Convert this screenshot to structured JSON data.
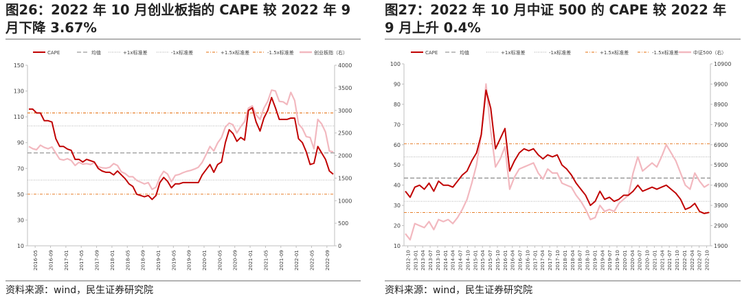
{
  "colors": {
    "cape": "#c00000",
    "index": "#f2b8bf",
    "mean": "#7f7f7f",
    "std1": "#a6a6a6",
    "std15": "#e46c0a"
  },
  "charts": [
    {
      "title": "图26：2022 年 10 月创业板指的 CAPE 较 2022 年 9 月下降 3.67%",
      "source": "资料来源：wind，民生证券研究院"
    },
    {
      "title": "图27：2022 年 10 月中证 500 的 CAPE 较 2022 年 9 月上升 0.4%",
      "source": "资料来源：wind，民生证券研究院"
    }
  ],
  "chart_data": [
    {
      "type": "line",
      "legend_position": "top",
      "legend": [
        "CAPE",
        "均值",
        "+1x标准差",
        "-1x标准差",
        "+1.5x标准差",
        "-1.5x标准差",
        "创业板指（右）"
      ],
      "ylim_left": [
        10,
        150
      ],
      "yticks_left": [
        10,
        30,
        50,
        70,
        90,
        110,
        130,
        150
      ],
      "ylim_right": [
        0,
        4000
      ],
      "yticks_right": [
        0,
        500,
        1000,
        1500,
        2000,
        2500,
        3000,
        3500,
        4000
      ],
      "xticks": [
        "2016-05",
        "2016-09",
        "2017-01",
        "2017-05",
        "2017-09",
        "2018-01",
        "2018-05",
        "2018-09",
        "2019-01",
        "2019-05",
        "2019-09",
        "2020-01",
        "2020-05",
        "2020-09",
        "2021-01",
        "2021-05",
        "2021-09",
        "2022-01",
        "2022-05",
        "2022-09"
      ],
      "reference_lines": {
        "mean": 82,
        "plus_1sd": 103,
        "minus_1sd": 61,
        "plus_1_5sd": 113,
        "minus_1_5sd": 50
      },
      "series": [
        {
          "name": "CAPE",
          "axis": "left",
          "values": [
            116,
            116,
            113,
            113,
            107,
            107,
            106,
            93,
            87,
            87,
            85,
            84,
            77,
            77,
            75,
            77,
            76,
            75,
            70,
            68,
            67,
            67,
            65,
            68,
            65,
            62,
            58,
            56,
            50,
            49,
            48,
            49,
            46,
            49,
            59,
            63,
            60,
            55,
            58,
            58,
            59,
            59,
            59,
            59,
            59,
            65,
            69,
            73,
            67,
            73,
            75,
            90,
            100,
            97,
            91,
            94,
            92,
            115,
            117,
            106,
            99,
            109,
            115,
            125,
            117,
            108,
            108,
            108,
            109,
            109,
            93,
            90,
            83,
            73,
            74,
            87,
            82,
            77,
            68,
            65.5
          ]
        },
        {
          "name": "创业板指（右）",
          "axis": "right",
          "values": [
            2200,
            2150,
            2130,
            2230,
            2180,
            2150,
            2190,
            2050,
            1920,
            1900,
            1930,
            1890,
            1780,
            1850,
            1810,
            1820,
            1800,
            1840,
            1750,
            1730,
            1720,
            1740,
            1820,
            1780,
            1640,
            1600,
            1530,
            1530,
            1450,
            1410,
            1370,
            1400,
            1250,
            1300,
            1520,
            1650,
            1590,
            1420,
            1560,
            1580,
            1620,
            1650,
            1670,
            1700,
            1740,
            1850,
            2020,
            2200,
            2100,
            2280,
            2400,
            2630,
            2720,
            2680,
            2500,
            2640,
            2750,
            3050,
            3100,
            2900,
            2800,
            3050,
            3200,
            3450,
            3430,
            3200,
            3190,
            3130,
            3400,
            3220,
            2700,
            2600,
            2420,
            2400,
            2150,
            2800,
            2700,
            2520,
            2100,
            2080
          ]
        }
      ]
    },
    {
      "type": "line",
      "legend_position": "top",
      "legend": [
        "CAPE",
        "均值",
        "+1x标准差",
        "-1x标准差",
        "+1.5x标准差",
        "-1.5x标准差",
        "中证500（右）"
      ],
      "ylim_left": [
        10,
        100
      ],
      "yticks_left": [
        10,
        20,
        30,
        40,
        50,
        60,
        70,
        80,
        90,
        100
      ],
      "ylim_right": [
        1900,
        10900
      ],
      "yticks_right": [
        1900,
        2900,
        3900,
        4900,
        5900,
        6900,
        7900,
        8900,
        9900,
        10900
      ],
      "xticks": [
        "2012-10",
        "2013-01",
        "2013-04",
        "2013-07",
        "2013-10",
        "2014-01",
        "2014-04",
        "2014-07",
        "2014-10",
        "2015-01",
        "2015-04",
        "2015-07",
        "2015-10",
        "2016-01",
        "2016-04",
        "2016-07",
        "2016-10",
        "2017-01",
        "2017-04",
        "2017-07",
        "2017-10",
        "2018-01",
        "2018-04",
        "2018-07",
        "2018-10",
        "2019-01",
        "2019-04",
        "2019-07",
        "2019-10",
        "2020-01",
        "2020-04",
        "2020-07",
        "2020-10",
        "2021-01",
        "2021-04",
        "2021-07",
        "2021-10",
        "2022-01",
        "2022-04",
        "2022-07",
        "2022-10"
      ],
      "reference_lines": {
        "mean": 43.5,
        "plus_1sd": 54,
        "minus_1sd": 32,
        "plus_1_5sd": 60.5,
        "minus_1_5sd": 26.5
      },
      "series": [
        {
          "name": "CAPE",
          "axis": "left",
          "values": [
            37,
            34,
            39,
            40,
            38,
            41,
            37,
            42,
            40,
            40,
            39,
            42,
            45,
            47,
            52,
            56,
            65,
            87,
            78,
            58,
            63,
            68,
            47,
            52,
            56,
            58,
            57,
            58,
            55,
            53,
            55,
            54,
            55,
            50,
            48,
            45,
            41,
            38,
            35,
            30,
            32,
            37,
            33,
            34,
            32,
            33,
            35,
            35,
            37,
            40,
            37,
            38,
            39,
            38,
            39,
            40,
            38,
            36,
            33,
            28,
            29,
            31,
            27,
            26,
            26.5
          ]
        },
        {
          "name": "中证500（右）",
          "axis": "right",
          "values": [
            2500,
            2200,
            3000,
            2900,
            2800,
            3100,
            2700,
            3200,
            3100,
            3200,
            3000,
            3300,
            3700,
            4200,
            5000,
            5900,
            7400,
            9900,
            7600,
            5800,
            6200,
            6800,
            4700,
            5300,
            5700,
            5800,
            5900,
            6000,
            5500,
            5200,
            5700,
            5500,
            5500,
            5000,
            4900,
            4800,
            4400,
            4100,
            3700,
            3200,
            3300,
            3900,
            3600,
            3700,
            3600,
            4000,
            4200,
            4400,
            5500,
            6300,
            5600,
            5800,
            6000,
            5800,
            6300,
            6900,
            6500,
            6100,
            5500,
            4900,
            4700,
            5500,
            5100,
            4800,
            4950
          ]
        }
      ]
    }
  ]
}
